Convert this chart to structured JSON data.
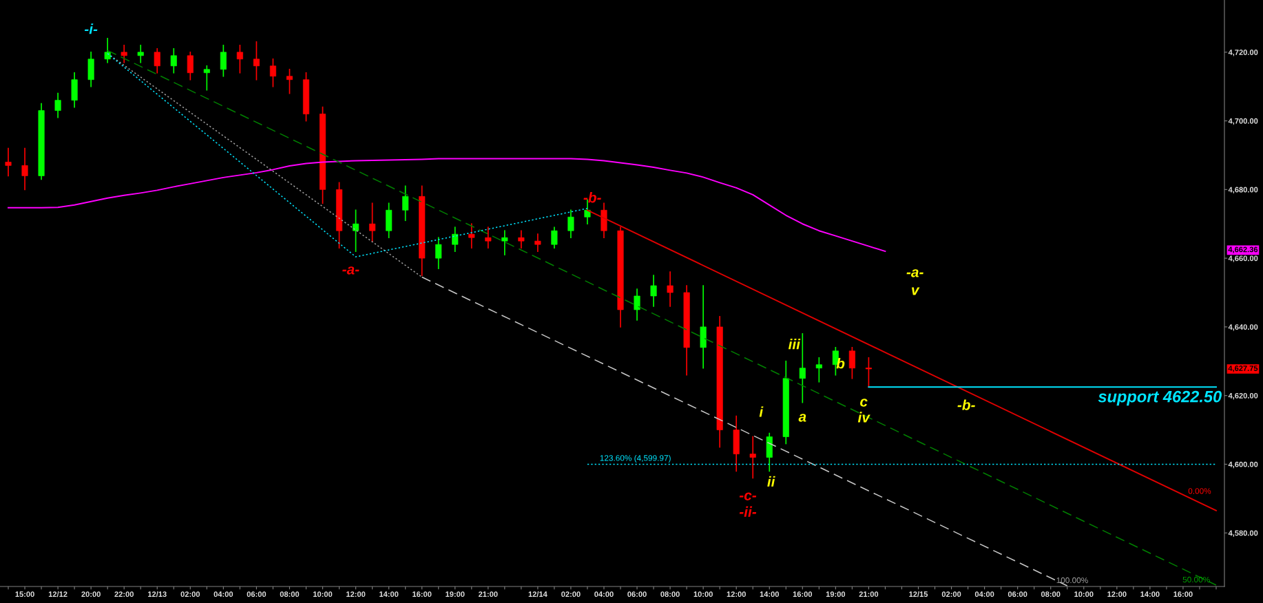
{
  "chart_data": {
    "type": "candlestick",
    "categories": [
      null,
      "15:00",
      null,
      "12/12",
      null,
      "20:00",
      null,
      "22:00",
      null,
      "12/13",
      null,
      "02:00",
      null,
      "04:00",
      null,
      "06:00",
      null,
      "08:00",
      null,
      "10:00",
      null,
      "12:00",
      null,
      "14:00",
      null,
      "16:00",
      null,
      "19:00",
      null,
      "21:00",
      null,
      null,
      "12/14",
      null,
      "02:00",
      null,
      "04:00",
      null,
      "06:00",
      null,
      "08:00",
      null,
      "10:00",
      null,
      "12:00",
      null,
      "14:00",
      null,
      "16:00",
      null,
      "19:00",
      null,
      "21:00",
      null,
      null,
      "12/15",
      null,
      "02:00",
      null,
      "04:00",
      null,
      "06:00",
      null,
      "08:00",
      null,
      "10:00",
      null,
      "12:00",
      null,
      "14:00",
      null,
      "16:00",
      null,
      null
    ],
    "ohlc": [
      [
        4688,
        4692,
        4684,
        4687
      ],
      [
        4687,
        4692,
        4680,
        4684
      ],
      [
        4684,
        4705,
        4683,
        4703
      ],
      [
        4703,
        4708,
        4701,
        4706
      ],
      [
        4706,
        4714,
        4704,
        4712
      ],
      [
        4712,
        4720,
        4710,
        4718
      ],
      [
        4718,
        4724,
        4717,
        4720
      ],
      [
        4720,
        4722,
        4717,
        4719
      ],
      [
        4719,
        4722,
        4717,
        4720
      ],
      [
        4720,
        4721,
        4714,
        4716
      ],
      [
        4716,
        4721,
        4714,
        4719
      ],
      [
        4719,
        4720,
        4712,
        4714
      ],
      [
        4714,
        4716,
        4709,
        4715
      ],
      [
        4715,
        4722,
        4713,
        4720
      ],
      [
        4720,
        4722,
        4714,
        4718
      ],
      [
        4718,
        4723,
        4712,
        4716
      ],
      [
        4716,
        4718,
        4710,
        4713
      ],
      [
        4713,
        4715,
        4708,
        4712
      ],
      [
        4712,
        4714,
        4700,
        4702
      ],
      [
        4702,
        4704,
        4676,
        4680
      ],
      [
        4680,
        4682,
        4663,
        4668
      ],
      [
        4668,
        4674,
        4662,
        4670
      ],
      [
        4670,
        4676,
        4665,
        4668
      ],
      [
        4668,
        4676,
        4666,
        4674
      ],
      [
        4674,
        4681,
        4671,
        4678
      ],
      [
        4678,
        4681,
        4655,
        4660
      ],
      [
        4660,
        4666,
        4657,
        4664
      ],
      [
        4664,
        4669,
        4662,
        4667
      ],
      [
        4667,
        4670,
        4663,
        4666
      ],
      [
        4666,
        4669,
        4663,
        4665
      ],
      [
        4665,
        4668,
        4661,
        4666
      ],
      [
        4666,
        4668,
        4663,
        4665
      ],
      [
        4665,
        4667,
        4662,
        4664
      ],
      [
        4664,
        4669,
        4663,
        4668
      ],
      [
        4668,
        4674,
        4666,
        4672
      ],
      [
        4672,
        4677,
        4670,
        4674
      ],
      [
        4674,
        4676,
        4666,
        4668
      ],
      [
        4668,
        4669,
        4640,
        4645
      ],
      [
        4645,
        4651,
        4642,
        4649
      ],
      [
        4649,
        4655,
        4646,
        4652
      ],
      [
        4652,
        4656,
        4646,
        4650
      ],
      [
        4650,
        4652,
        4626,
        4634
      ],
      [
        4634,
        4652,
        4628,
        4640
      ],
      [
        4640,
        4643,
        4605,
        4610
      ],
      [
        4610,
        4614,
        4598,
        4603
      ],
      [
        4603,
        4608,
        4596,
        4602
      ],
      [
        4602,
        4609,
        4598,
        4608
      ],
      [
        4608,
        4630,
        4606,
        4625
      ],
      [
        4625,
        4638,
        4618,
        4628
      ],
      [
        4628,
        4631,
        4624,
        4629
      ],
      [
        4629,
        4634,
        4626,
        4633
      ],
      [
        4633,
        4634,
        4625,
        4628
      ],
      [
        4628,
        4631,
        4622.5,
        4627.75
      ],
      null,
      null,
      null,
      null,
      null,
      null,
      null,
      null,
      null,
      null,
      null,
      null,
      null,
      null,
      null,
      null,
      null,
      null,
      null,
      null,
      null
    ],
    "colors": [
      "#ff0000",
      "#ff0000",
      "#00ff00",
      "#00ff00",
      "#00ff00",
      "#00ff00",
      "#00ff00",
      "#ff0000",
      "#00ff00",
      "#ff0000",
      "#00ff00",
      "#ff0000",
      "#00ff00",
      "#00ff00",
      "#ff0000",
      "#ff0000",
      "#ff0000",
      "#ff0000",
      "#ff0000",
      "#ff0000",
      "#ff0000",
      "#00ff00",
      "#ff0000",
      "#00ff00",
      "#00ff00",
      "#ff0000",
      "#00ff00",
      "#00ff00",
      "#ff0000",
      "#ff0000",
      "#00ff00",
      "#ff0000",
      "#ff0000",
      "#00ff00",
      "#00ff00",
      "#00ff00",
      "#ff0000",
      "#ff0000",
      "#00ff00",
      "#00ff00",
      "#ff0000",
      "#ff0000",
      "#00ff00",
      "#ff0000",
      "#ff0000",
      "#ff0000",
      "#00ff00",
      "#00ff00",
      "#00ff00",
      "#00ff00",
      "#00ff00",
      "#ff0000",
      "#ff0000",
      null,
      null,
      null,
      null,
      null,
      null,
      null,
      null,
      null,
      null,
      null,
      null,
      null,
      null,
      null,
      null,
      null,
      null,
      null,
      null,
      null
    ],
    "series": [
      {
        "type": "line",
        "color": "#ff00ff",
        "line_style": "solid",
        "values": [
          4674.7,
          4674.7,
          4674.7,
          4674.8,
          4675.5,
          4676.5,
          4677.5,
          4678.3,
          4679.0,
          4679.8,
          4680.8,
          4681.7,
          4682.6,
          4683.5,
          4684.2,
          4684.9,
          4685.8,
          4686.9,
          4687.6,
          4688.0,
          4688.2,
          4688.4,
          4688.5,
          4688.6,
          4688.7,
          4688.8,
          4689.0,
          4689.0,
          4689.0,
          4689.0,
          4689.0,
          4689.0,
          4689.0,
          4689.0,
          4689.0,
          4688.8,
          4688.4,
          4687.8,
          4687.2,
          4686.5,
          4685.6,
          4684.8,
          4683.6,
          4682.0,
          4680.5,
          4678.5,
          4675.5,
          4672.5,
          4670.0,
          4668.0,
          4666.5,
          4665.0,
          4663.5,
          4662.0,
          null,
          null,
          null,
          null,
          null,
          null,
          null,
          null,
          null,
          null,
          null,
          null,
          null,
          null,
          null,
          null,
          null,
          null,
          null,
          null
        ]
      },
      {
        "type": "line",
        "color": "#008000",
        "line_style": "dashed",
        "values": [
          null,
          null,
          null,
          null,
          null,
          null,
          4720.5,
          null,
          null,
          null,
          null,
          null,
          null,
          null,
          null,
          null,
          null,
          null,
          null,
          null,
          null,
          null,
          null,
          null,
          null,
          null,
          null,
          null,
          null,
          null,
          null,
          null,
          null,
          null,
          null,
          null,
          null,
          null,
          null,
          null,
          null,
          null,
          null,
          null,
          null,
          null,
          null,
          null,
          null,
          null,
          null,
          null,
          null,
          null,
          null,
          null,
          null,
          null,
          null,
          null,
          null,
          null,
          null,
          null,
          null,
          null,
          null,
          null,
          null,
          null,
          null,
          null,
          null,
          4564.8
        ]
      },
      {
        "type": "line",
        "color": "#a0a0a0",
        "line_style": "dotted",
        "values": [
          null,
          null,
          null,
          null,
          null,
          null,
          4719.6,
          null,
          null,
          null,
          null,
          null,
          null,
          null,
          null,
          null,
          null,
          null,
          null,
          null,
          null,
          null,
          null,
          null,
          null,
          4654.5,
          null,
          null,
          null,
          null,
          null,
          null,
          null,
          null,
          null,
          null,
          null,
          null,
          null,
          null,
          null,
          null,
          null,
          null,
          null,
          null,
          null,
          null,
          null,
          null,
          null,
          null,
          null,
          null,
          null,
          null,
          null,
          null,
          null,
          null,
          null,
          null,
          null,
          null,
          null,
          null,
          null,
          null,
          null,
          null,
          null,
          null,
          null,
          null
        ]
      },
      {
        "type": "line",
        "color": "#c8c8c8",
        "line_style": "dashed",
        "values": [
          null,
          null,
          null,
          null,
          null,
          null,
          null,
          null,
          null,
          null,
          null,
          null,
          null,
          null,
          null,
          null,
          null,
          null,
          null,
          null,
          null,
          null,
          null,
          null,
          null,
          4654.5,
          null,
          null,
          null,
          null,
          null,
          null,
          null,
          null,
          null,
          null,
          null,
          null,
          null,
          null,
          null,
          null,
          null,
          null,
          null,
          null,
          null,
          null,
          null,
          null,
          null,
          null,
          null,
          null,
          null,
          null,
          null,
          null,
          null,
          null,
          null,
          null,
          null,
          null,
          4564.6,
          null,
          null,
          null,
          null,
          null,
          null,
          null,
          null,
          null
        ]
      },
      {
        "type": "line",
        "color": "#00e5ff",
        "line_style": "dotted",
        "values": [
          null,
          null,
          null,
          null,
          null,
          null,
          4719.6,
          null,
          null,
          null,
          null,
          null,
          null,
          null,
          null,
          null,
          null,
          null,
          null,
          null,
          null,
          4660.4,
          null,
          null,
          null,
          null,
          null,
          null,
          null,
          null,
          null,
          null,
          null,
          null,
          null,
          4674.5,
          null,
          null,
          null,
          null,
          null,
          null,
          null,
          null,
          null,
          null,
          null,
          null,
          null,
          null,
          null,
          null,
          null,
          null,
          null,
          null,
          null,
          null,
          null,
          null,
          null,
          null,
          null,
          null,
          null,
          null,
          null,
          null,
          null,
          null,
          null,
          null,
          null,
          null
        ]
      },
      {
        "type": "line",
        "color": "#e00000",
        "line_style": "solid",
        "values": [
          null,
          null,
          null,
          null,
          null,
          null,
          null,
          null,
          null,
          null,
          null,
          null,
          null,
          null,
          null,
          null,
          null,
          null,
          null,
          null,
          null,
          null,
          null,
          null,
          null,
          null,
          null,
          null,
          null,
          null,
          null,
          null,
          null,
          null,
          null,
          4674.0,
          null,
          null,
          null,
          null,
          null,
          null,
          null,
          null,
          null,
          null,
          null,
          null,
          null,
          null,
          null,
          null,
          null,
          null,
          null,
          null,
          null,
          null,
          null,
          null,
          null,
          null,
          null,
          null,
          null,
          null,
          null,
          null,
          null,
          null,
          null,
          null,
          null,
          4586.5
        ]
      },
      {
        "type": "line",
        "color": "#00e5ff",
        "line_style": "solid",
        "values": [
          null,
          null,
          null,
          null,
          null,
          null,
          null,
          null,
          null,
          null,
          null,
          null,
          null,
          null,
          null,
          null,
          null,
          null,
          null,
          null,
          null,
          null,
          null,
          null,
          null,
          null,
          null,
          null,
          null,
          null,
          null,
          null,
          null,
          null,
          null,
          null,
          null,
          null,
          null,
          null,
          null,
          null,
          null,
          null,
          null,
          null,
          null,
          null,
          null,
          null,
          null,
          null,
          4622.5,
          null,
          null,
          null,
          null,
          null,
          null,
          null,
          null,
          null,
          null,
          null,
          null,
          null,
          null,
          null,
          null,
          null,
          null,
          null,
          null,
          4622.5
        ]
      },
      {
        "type": "line",
        "color": "#00e5ff",
        "line_style": "dotted",
        "values": [
          null,
          null,
          null,
          null,
          null,
          null,
          null,
          null,
          null,
          null,
          null,
          null,
          null,
          null,
          null,
          null,
          null,
          null,
          null,
          null,
          null,
          null,
          null,
          null,
          null,
          null,
          null,
          null,
          null,
          null,
          null,
          null,
          null,
          null,
          null,
          4600,
          null,
          null,
          null,
          null,
          null,
          null,
          null,
          null,
          null,
          null,
          null,
          null,
          null,
          null,
          null,
          null,
          null,
          null,
          null,
          null,
          null,
          null,
          null,
          null,
          null,
          null,
          null,
          null,
          null,
          null,
          null,
          null,
          null,
          null,
          null,
          null,
          null,
          4600
        ]
      }
    ],
    "ylim": [
      4564.4,
      4735.2
    ],
    "yticks": [
      {
        "value": 4580,
        "label": "4,580.00"
      },
      {
        "value": 4600,
        "label": "4,600.00"
      },
      {
        "value": 4620,
        "label": "4,620.00"
      },
      {
        "value": 4640,
        "label": "4,640.00"
      },
      {
        "value": 4660,
        "label": "4,660.00"
      },
      {
        "value": 4680,
        "label": "4,680.00"
      },
      {
        "value": 4700,
        "label": "4,700.00"
      },
      {
        "value": 4720,
        "label": "4,720.00"
      }
    ],
    "grid": false,
    "annotations": [
      "-i-",
      "-a-",
      "-b-",
      "-c-",
      "-ii-",
      "i",
      "ii",
      "iii",
      "a",
      "b",
      "c",
      "iv",
      "-a-",
      "v",
      "-b-",
      "support 4622.50",
      "123.60% (4,599.97)",
      "0.00%",
      "50.00%",
      "100.00%",
      "4,662.36",
      "4,627.75"
    ]
  }
}
